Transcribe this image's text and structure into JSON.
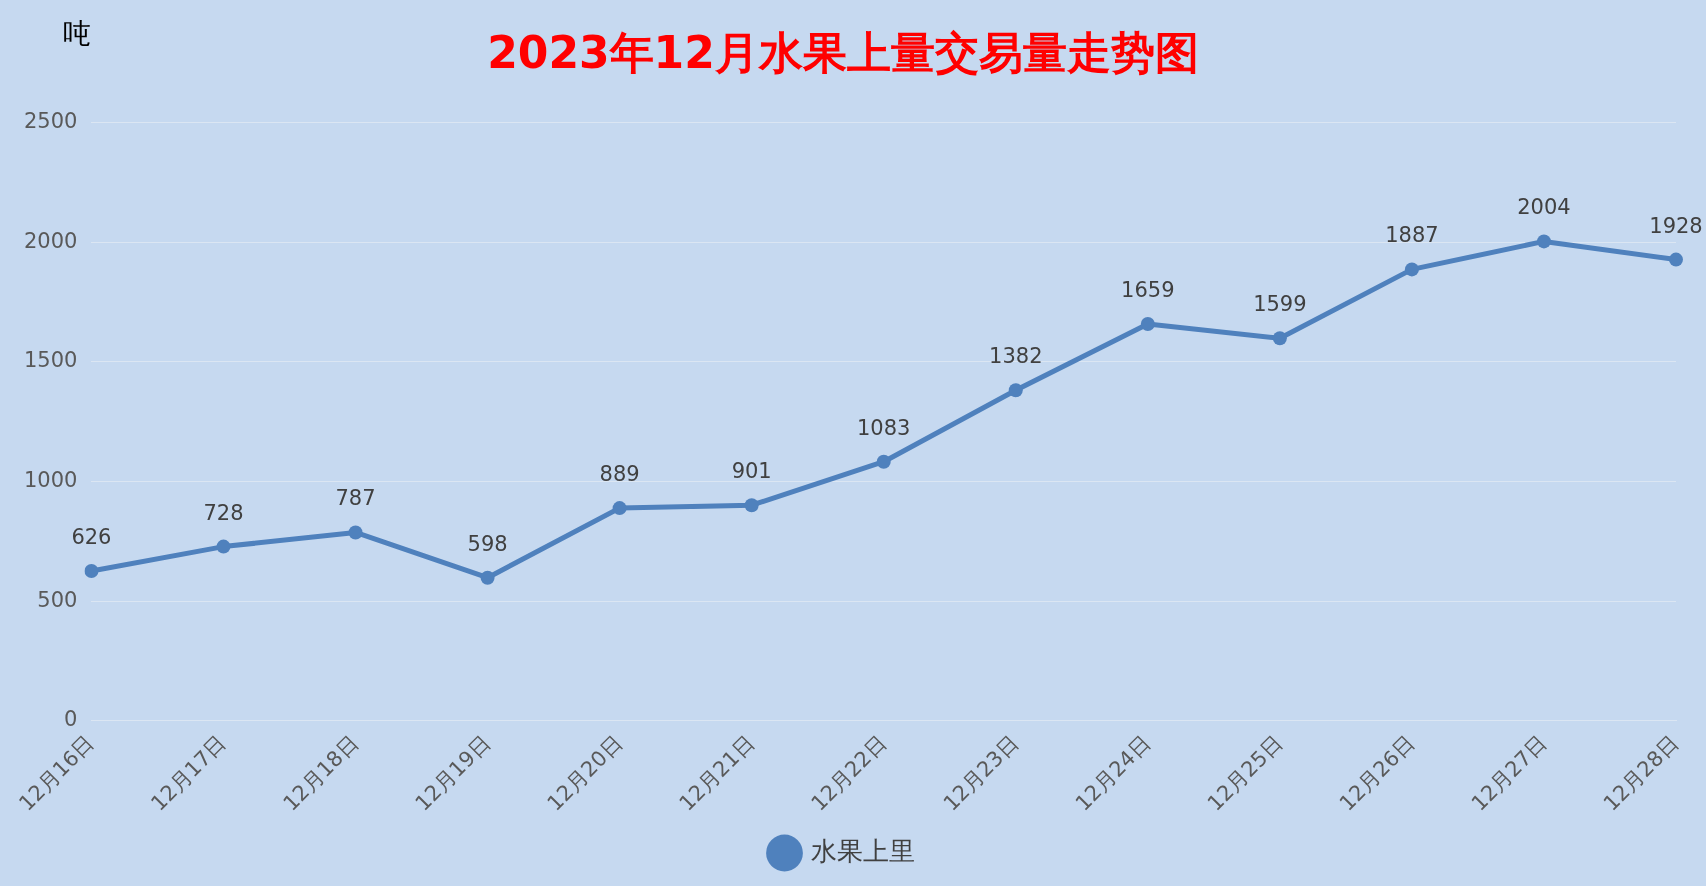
{
  "chart_data": {
    "type": "line",
    "title": "2023年12月水果上量交易量走势图",
    "ylabel": "吨",
    "categories": [
      "12月16日",
      "12月17日",
      "12月18日",
      "12月19日",
      "12月20日",
      "12月21日",
      "12月22日",
      "12月23日",
      "12月24日",
      "12月25日",
      "12月26日",
      "12月27日",
      "12月28日"
    ],
    "series": [
      {
        "name": "水果上里",
        "color": "#4f81bd",
        "values": [
          626,
          728,
          787,
          598,
          889,
          901,
          1083,
          1382,
          1659,
          1599,
          1887,
          2004,
          1928
        ]
      }
    ],
    "ylim": [
      0,
      2500
    ],
    "yticks": [
      0,
      500,
      1000,
      1500,
      2000,
      2500
    ],
    "grid": "y",
    "legend": "bottom",
    "marker": "circle",
    "line_style": "solid",
    "data_labels": true
  }
}
